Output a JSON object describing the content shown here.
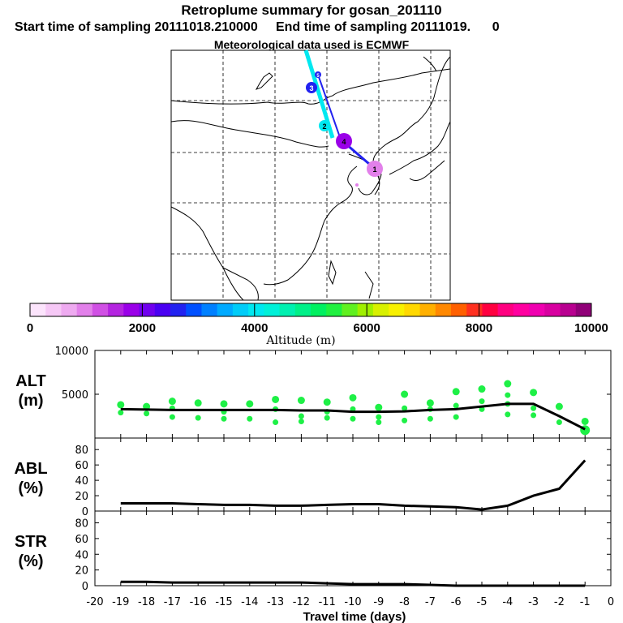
{
  "header": {
    "title": "Retroplume summary for gosan_201110",
    "start_label": "Start time of sampling 20111018.210000",
    "end_label": "End time of sampling 20111019.",
    "end_trail": "0",
    "met_label": "Meteorological data used is ECMWF"
  },
  "map": {
    "trajectory_markers": [
      "1",
      "2",
      "3",
      "4",
      "5"
    ]
  },
  "colorbar": {
    "title": "Altitude (m)",
    "ticks": [
      "0",
      "2000",
      "4000",
      "6000",
      "8000",
      "10000"
    ],
    "colors": [
      "#fce4fc",
      "#f6c8f6",
      "#eeaaf0",
      "#e280ea",
      "#d050e4",
      "#b424e0",
      "#9a00e8",
      "#7000ee",
      "#4a00f2",
      "#2222f0",
      "#0050ff",
      "#0080ff",
      "#00aaff",
      "#00ccf8",
      "#00e8f0",
      "#00f0d8",
      "#00f0b0",
      "#00f088",
      "#00f060",
      "#20f040",
      "#60f020",
      "#a0f000",
      "#d8f000",
      "#f8f000",
      "#ffd800",
      "#ffb000",
      "#ff8800",
      "#ff6000",
      "#ff3020",
      "#ff0040",
      "#ff0080",
      "#ff00a0",
      "#f000b0",
      "#d800a0",
      "#b80090",
      "#900078"
    ]
  },
  "chart_data": [
    {
      "type": "line",
      "panel": "ALT",
      "ylabel": "ALT\n(m)",
      "ylim": [
        0,
        10000
      ],
      "yticks": [
        "10000",
        "5000"
      ],
      "x": [
        -19,
        -18,
        -17,
        -16,
        -15,
        -14,
        -13,
        -12,
        -11,
        -10,
        -9,
        -8,
        -7,
        -6,
        -5,
        -4,
        -3,
        -2,
        -1
      ],
      "series": [
        {
          "name": "mean altitude",
          "values": [
            3300,
            3250,
            3200,
            3200,
            3200,
            3200,
            3200,
            3150,
            3150,
            3000,
            3000,
            3050,
            3200,
            3300,
            3600,
            3900,
            3900,
            2500,
            1000
          ]
        }
      ],
      "plume_dots": [
        {
          "x": -19,
          "y": [
            3800,
            2900
          ]
        },
        {
          "x": -18,
          "y": [
            3600,
            2800
          ]
        },
        {
          "x": -17,
          "y": [
            4200,
            3400,
            2400
          ]
        },
        {
          "x": -16,
          "y": [
            4000,
            2300
          ]
        },
        {
          "x": -15,
          "y": [
            3900,
            3000,
            2200
          ]
        },
        {
          "x": -14,
          "y": [
            3900,
            2200
          ]
        },
        {
          "x": -13,
          "y": [
            4400,
            3300,
            1800
          ]
        },
        {
          "x": -12,
          "y": [
            4300,
            2500,
            1900
          ]
        },
        {
          "x": -11,
          "y": [
            4100,
            3000,
            2300
          ]
        },
        {
          "x": -10,
          "y": [
            4600,
            3300,
            2200
          ]
        },
        {
          "x": -9,
          "y": [
            3500,
            2400,
            1800
          ]
        },
        {
          "x": -8,
          "y": [
            5000,
            3400,
            2000
          ]
        },
        {
          "x": -7,
          "y": [
            4000,
            3300,
            2200
          ]
        },
        {
          "x": -6,
          "y": [
            5300,
            3700,
            2400
          ]
        },
        {
          "x": -5,
          "y": [
            5600,
            4200,
            3300
          ]
        },
        {
          "x": -4,
          "y": [
            6200,
            4900,
            3900,
            2700
          ]
        },
        {
          "x": -3,
          "y": [
            5200,
            3400,
            2600
          ]
        },
        {
          "x": -2,
          "y": [
            3600,
            1800
          ]
        },
        {
          "x": -1,
          "y": [
            1900,
            900
          ]
        }
      ]
    },
    {
      "type": "line",
      "panel": "ABL",
      "ylabel": "ABL\n(%)",
      "ylim": [
        0,
        95
      ],
      "yticks": [
        "80",
        "60",
        "40",
        "20",
        "0"
      ],
      "x": [
        -19,
        -18,
        -17,
        -16,
        -15,
        -14,
        -13,
        -12,
        -11,
        -10,
        -9,
        -8,
        -7,
        -6,
        -5,
        -4,
        -3,
        -2,
        -1
      ],
      "series": [
        {
          "name": "ABL fraction",
          "values": [
            10,
            10,
            10,
            9,
            8,
            8,
            7,
            7,
            8,
            9,
            9,
            7,
            6,
            5,
            2,
            7,
            20,
            29,
            66
          ]
        }
      ]
    },
    {
      "type": "line",
      "panel": "STR",
      "ylabel": "STR\n(%)",
      "ylim": [
        0,
        95
      ],
      "yticks": [
        "80",
        "60",
        "40",
        "20",
        "0"
      ],
      "x": [
        -19,
        -18,
        -17,
        -16,
        -15,
        -14,
        -13,
        -12,
        -11,
        -10,
        -9,
        -8,
        -7,
        -6,
        -5,
        -4,
        -3,
        -2,
        -1
      ],
      "series": [
        {
          "name": "STR fraction",
          "values": [
            5,
            5,
            4,
            4,
            4,
            4,
            4,
            4,
            3,
            2,
            2,
            2,
            1,
            0,
            0,
            0,
            0,
            0,
            0
          ]
        }
      ]
    }
  ],
  "xaxis": {
    "label": "Travel time (days)",
    "ticks": [
      "-20",
      "-19",
      "-18",
      "-17",
      "-16",
      "-15",
      "-14",
      "-13",
      "-12",
      "-11",
      "-10",
      "-9",
      "-8",
      "-7",
      "-6",
      "-5",
      "-4",
      "-3",
      "-2",
      "-1",
      "0"
    ]
  }
}
